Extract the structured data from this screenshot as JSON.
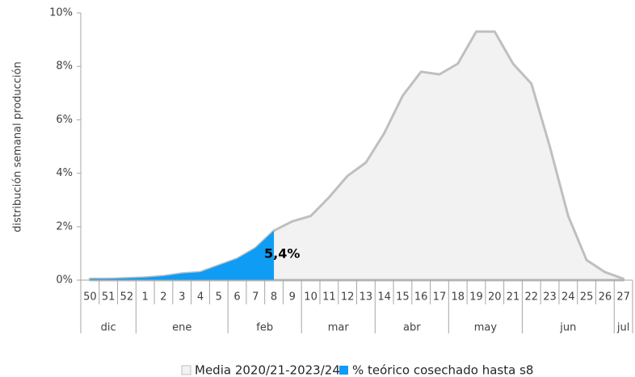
{
  "chart_data": {
    "type": "area",
    "y_label": "distribución semanal producción",
    "categories": [
      "50",
      "51",
      "52",
      "1",
      "2",
      "3",
      "4",
      "5",
      "6",
      "7",
      "8",
      "9",
      "10",
      "11",
      "12",
      "13",
      "14",
      "15",
      "16",
      "17",
      "18",
      "19",
      "20",
      "21",
      "22",
      "23",
      "24",
      "25",
      "26",
      "27"
    ],
    "groups": [
      {
        "label": "dic",
        "count": 3
      },
      {
        "label": "ene",
        "count": 5
      },
      {
        "label": "feb",
        "count": 4
      },
      {
        "label": "mar",
        "count": 4
      },
      {
        "label": "abr",
        "count": 4
      },
      {
        "label": "may",
        "count": 4
      },
      {
        "label": "jun",
        "count": 5
      },
      {
        "label": "jul",
        "count": 1
      }
    ],
    "series": [
      {
        "name": "Media 2020/21-2023/24",
        "color": "#f2f2f2",
        "stroke": "#bfbfbf",
        "values": [
          0.05,
          0.05,
          0.07,
          0.1,
          0.15,
          0.25,
          0.3,
          0.55,
          0.8,
          1.2,
          1.85,
          2.2,
          2.4,
          3.1,
          3.9,
          4.4,
          5.5,
          6.9,
          7.8,
          7.7,
          8.1,
          9.3,
          9.3,
          8.1,
          7.35,
          5.0,
          2.4,
          0.75,
          0.3,
          0.05
        ]
      },
      {
        "name": "% teórico cosechado hasta s8",
        "color": "#0f9cf5",
        "values": [
          0.05,
          0.05,
          0.07,
          0.1,
          0.15,
          0.25,
          0.3,
          0.55,
          0.8,
          1.2,
          1.85,
          null,
          null,
          null,
          null,
          null,
          null,
          null,
          null,
          null,
          null,
          null,
          null,
          null,
          null,
          null,
          null,
          null,
          null,
          null
        ]
      }
    ],
    "annotation": {
      "value": 5.4,
      "label": "5,4%"
    },
    "ylim": [
      0,
      10
    ],
    "yticks": [
      {
        "value": 0,
        "label": "0%"
      },
      {
        "value": 2,
        "label": "2%"
      },
      {
        "value": 4,
        "label": "4%"
      },
      {
        "value": 6,
        "label": "6%"
      },
      {
        "value": 8,
        "label": "8%"
      },
      {
        "value": 10,
        "label": "10%"
      }
    ],
    "legend": "bottom"
  }
}
